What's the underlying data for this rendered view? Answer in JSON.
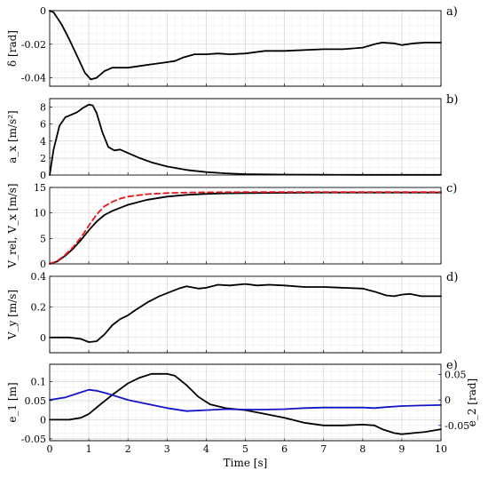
{
  "chart_data": [
    {
      "type": "line",
      "panel_label": "a)",
      "ylabel": "δ [rad]",
      "xlim": [
        0,
        10
      ],
      "ylim": [
        -0.045,
        0
      ],
      "yticks": [
        0,
        -0.02,
        -0.04
      ],
      "yticklabels": [
        "0",
        "-0.02",
        "-0.04"
      ],
      "grid": true,
      "series": [
        {
          "color": "#000000",
          "dash": "",
          "x": [
            0,
            0.1,
            0.3,
            0.5,
            0.7,
            0.9,
            1.05,
            1.2,
            1.4,
            1.6,
            2.0,
            2.3,
            2.6,
            2.9,
            3.2,
            3.4,
            3.7,
            4.0,
            4.3,
            4.6,
            5.0,
            5.5,
            6.0,
            7.0,
            7.5,
            8.0,
            8.3,
            8.5,
            8.8,
            9.0,
            9.3,
            9.6,
            10
          ],
          "y": [
            0,
            -0.001,
            -0.008,
            -0.017,
            -0.027,
            -0.037,
            -0.041,
            -0.04,
            -0.036,
            -0.034,
            -0.034,
            -0.033,
            -0.032,
            -0.031,
            -0.03,
            -0.028,
            -0.026,
            -0.026,
            -0.0255,
            -0.026,
            -0.0255,
            -0.024,
            -0.024,
            -0.023,
            -0.023,
            -0.022,
            -0.02,
            -0.019,
            -0.0195,
            -0.0205,
            -0.0195,
            -0.019,
            -0.019
          ]
        }
      ]
    },
    {
      "type": "line",
      "panel_label": "b)",
      "ylabel": "a_x [m/s²]",
      "xlim": [
        0,
        10
      ],
      "ylim": [
        0,
        9
      ],
      "yticks": [
        0,
        2,
        4,
        6,
        8
      ],
      "yticklabels": [
        "0",
        "2",
        "4",
        "6",
        "8"
      ],
      "grid": true,
      "series": [
        {
          "color": "#000000",
          "dash": "",
          "x": [
            0,
            0.1,
            0.25,
            0.4,
            0.55,
            0.7,
            0.85,
            1.0,
            1.1,
            1.2,
            1.35,
            1.5,
            1.65,
            1.8,
            2.0,
            2.3,
            2.6,
            3.0,
            3.5,
            4.0,
            4.5,
            5.0,
            6.0,
            7.0,
            8.0,
            10
          ],
          "y": [
            0,
            3.0,
            5.8,
            6.8,
            7.1,
            7.4,
            7.9,
            8.3,
            8.2,
            7.3,
            5.0,
            3.3,
            2.9,
            3.0,
            2.6,
            2.0,
            1.5,
            1.0,
            0.6,
            0.35,
            0.2,
            0.1,
            0.05,
            0.03,
            0.02,
            0.02
          ]
        }
      ]
    },
    {
      "type": "line",
      "panel_label": "c)",
      "ylabel": "V_rel, V_x [m/s]",
      "xlim": [
        0,
        10
      ],
      "ylim": [
        0,
        15
      ],
      "yticks": [
        0,
        5,
        10,
        15
      ],
      "yticklabels": [
        "0",
        "5",
        "10",
        "15"
      ],
      "grid": true,
      "series": [
        {
          "color": "#000000",
          "dash": "",
          "x": [
            0,
            0.2,
            0.4,
            0.6,
            0.8,
            1.0,
            1.2,
            1.4,
            1.6,
            1.8,
            2.0,
            2.5,
            3.0,
            3.5,
            4.0,
            4.5,
            5.0,
            6.0,
            7.0,
            8.0,
            10
          ],
          "y": [
            0,
            0.5,
            1.6,
            3.0,
            4.7,
            6.6,
            8.3,
            9.6,
            10.4,
            11.0,
            11.6,
            12.6,
            13.2,
            13.55,
            13.75,
            13.85,
            13.9,
            13.95,
            14.0,
            14.0,
            14.0
          ]
        },
        {
          "color": "#e8141c",
          "dash": "6,4",
          "x": [
            0,
            0.2,
            0.4,
            0.6,
            0.8,
            1.0,
            1.2,
            1.4,
            1.6,
            1.8,
            2.0,
            2.5,
            3.0,
            3.5,
            4.0,
            5.0,
            6.0,
            8.0,
            10
          ],
          "y": [
            0,
            0.6,
            1.8,
            3.3,
            5.2,
            7.5,
            9.7,
            11.3,
            12.2,
            12.8,
            13.2,
            13.7,
            13.9,
            14.0,
            14.05,
            14.1,
            14.1,
            14.1,
            14.1
          ]
        }
      ]
    },
    {
      "type": "line",
      "panel_label": "d)",
      "ylabel": "V_y [m/s]",
      "xlim": [
        0,
        10
      ],
      "ylim": [
        -0.1,
        0.4
      ],
      "yticks": [
        0,
        0.2,
        0.4
      ],
      "yticklabels": [
        "0",
        "0.2",
        "0.4"
      ],
      "grid": true,
      "series": [
        {
          "color": "#000000",
          "dash": "",
          "x": [
            0,
            0.5,
            0.8,
            1.0,
            1.2,
            1.4,
            1.6,
            1.8,
            2.0,
            2.2,
            2.5,
            2.8,
            3.0,
            3.3,
            3.5,
            3.8,
            4.0,
            4.3,
            4.6,
            5.0,
            5.3,
            5.6,
            6.0,
            6.5,
            7.0,
            7.5,
            8.0,
            8.3,
            8.6,
            8.8,
            9.0,
            9.2,
            9.5,
            10
          ],
          "y": [
            0,
            0,
            -0.01,
            -0.03,
            -0.025,
            0.02,
            0.08,
            0.12,
            0.145,
            0.18,
            0.23,
            0.27,
            0.29,
            0.32,
            0.335,
            0.32,
            0.325,
            0.345,
            0.34,
            0.35,
            0.34,
            0.345,
            0.34,
            0.33,
            0.33,
            0.325,
            0.32,
            0.3,
            0.275,
            0.27,
            0.28,
            0.285,
            0.27,
            0.27
          ]
        }
      ]
    },
    {
      "type": "line",
      "panel_label": "e)",
      "ylabel": "e_1 [m]",
      "y2label": "e_2 [rad]",
      "xlabel": "Time [s]",
      "xlim": [
        0,
        10
      ],
      "xticks": [
        0,
        1,
        2,
        3,
        4,
        5,
        6,
        7,
        8,
        9,
        10
      ],
      "xticklabels": [
        "0",
        "1",
        "2",
        "3",
        "4",
        "5",
        "6",
        "7",
        "8",
        "9",
        "10"
      ],
      "ylim": [
        -0.055,
        0.145
      ],
      "yticks": [
        0.1,
        0.05,
        0,
        -0.05
      ],
      "yticklabels": [
        "0.1",
        "0.05",
        "0",
        "-0.05"
      ],
      "y2lim": [
        -0.08,
        0.07
      ],
      "y2ticks": [
        0.05,
        0,
        -0.05
      ],
      "y2ticklabels": [
        "0.05",
        "0",
        "-0.05"
      ],
      "grid": true,
      "series": [
        {
          "color": "#000000",
          "dash": "",
          "axis": "left",
          "x": [
            0,
            0.5,
            0.8,
            1.0,
            1.3,
            1.6,
            2.0,
            2.3,
            2.6,
            3.0,
            3.2,
            3.5,
            3.8,
            4.1,
            4.5,
            5.0,
            5.5,
            6.0,
            6.5,
            7.0,
            7.5,
            8.0,
            8.3,
            8.5,
            8.8,
            9.0,
            9.3,
            9.6,
            10
          ],
          "y": [
            0,
            0,
            0.005,
            0.015,
            0.04,
            0.065,
            0.095,
            0.11,
            0.12,
            0.12,
            0.115,
            0.09,
            0.06,
            0.04,
            0.03,
            0.025,
            0.015,
            0.005,
            -0.008,
            -0.015,
            -0.015,
            -0.013,
            -0.015,
            -0.025,
            -0.035,
            -0.038,
            -0.035,
            -0.032,
            -0.025
          ]
        },
        {
          "color": "#1414c8",
          "dash": "",
          "axis": "right",
          "x": [
            0,
            0.4,
            0.8,
            1.0,
            1.2,
            1.5,
            2.0,
            2.5,
            3.0,
            3.5,
            4.0,
            4.5,
            5.0,
            5.5,
            6.0,
            6.5,
            7.0,
            7.5,
            8.0,
            8.3,
            8.6,
            9.0,
            9.5,
            10
          ],
          "y": [
            0,
            0.005,
            0.015,
            0.02,
            0.018,
            0.012,
            0.0,
            -0.008,
            -0.016,
            -0.022,
            -0.02,
            -0.018,
            -0.019,
            -0.019,
            -0.018,
            -0.016,
            -0.015,
            -0.015,
            -0.015,
            -0.016,
            -0.014,
            -0.012,
            -0.011,
            -0.01
          ]
        }
      ]
    }
  ]
}
